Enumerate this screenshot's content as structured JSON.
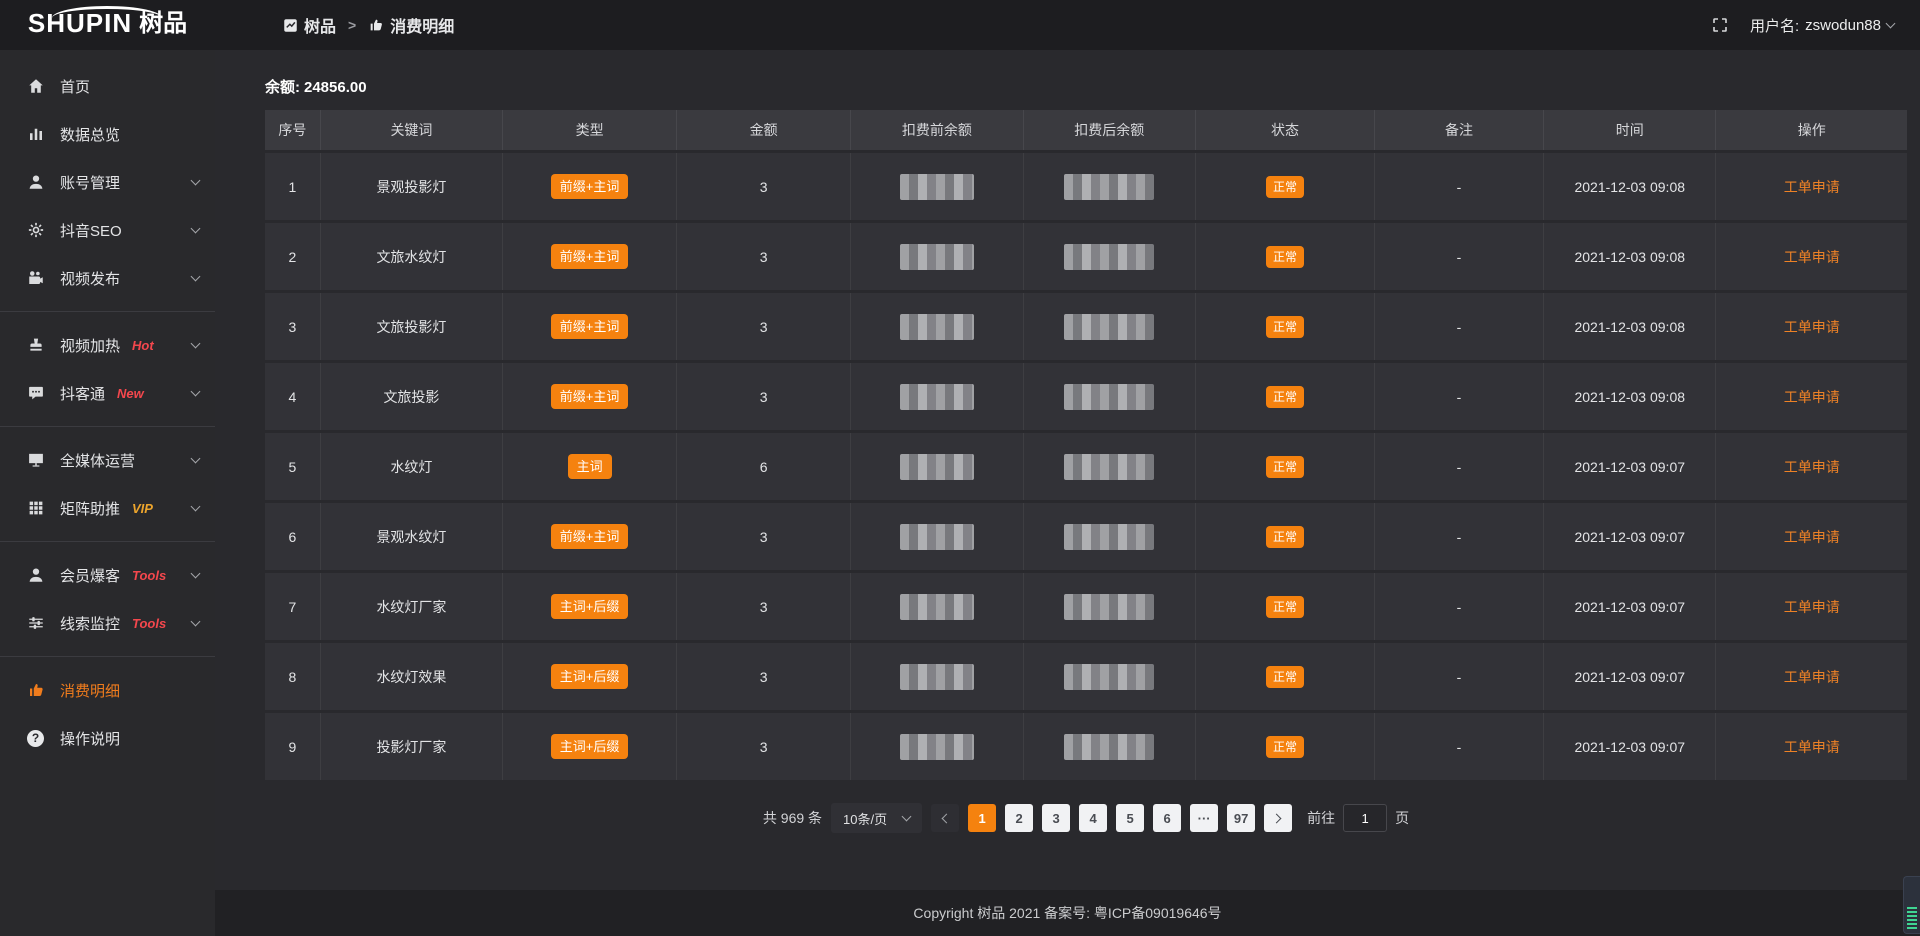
{
  "brand": {
    "logo_en": "SHUPIN",
    "logo_cn": "树品"
  },
  "topbar": {
    "breadcrumb": [
      {
        "label": "树品",
        "icon": "edit-square-icon"
      },
      {
        "label": "消费明细",
        "icon": "thumb-icon"
      }
    ],
    "separator": ">",
    "fullscreen_icon": "fullscreen-icon",
    "username_label": "用户名:",
    "username": "zswodun88"
  },
  "sidebar": {
    "items": [
      {
        "icon": "home-icon",
        "label": "首页"
      },
      {
        "icon": "bar-chart-icon",
        "label": "数据总览"
      },
      {
        "icon": "user-icon",
        "label": "账号管理",
        "expandable": true
      },
      {
        "icon": "gear-icon",
        "label": "抖音SEO",
        "expandable": true
      },
      {
        "icon": "video-camera-icon",
        "label": "视频发布",
        "expandable": true
      },
      {
        "divider": true
      },
      {
        "icon": "stamp-icon",
        "label": "视频加热",
        "badge": "Hot",
        "badge_style": "red",
        "expandable": true
      },
      {
        "icon": "chat-icon",
        "label": "抖客通",
        "badge": "New",
        "badge_style": "red",
        "expandable": true
      },
      {
        "divider": true
      },
      {
        "icon": "monitor-icon",
        "label": "全媒体运营",
        "expandable": true
      },
      {
        "icon": "grid-icon",
        "label": "矩阵助推",
        "badge": "VIP",
        "badge_style": "gold",
        "expandable": true
      },
      {
        "divider": true
      },
      {
        "icon": "user-icon",
        "label": "会员爆客",
        "badge": "Tools",
        "badge_style": "red",
        "expandable": true
      },
      {
        "icon": "sliders-icon",
        "label": "线索监控",
        "badge": "Tools",
        "badge_style": "red",
        "expandable": true
      },
      {
        "divider": true
      },
      {
        "icon": "thumb-icon",
        "label": "消费明细",
        "active": true
      },
      {
        "icon": "question-icon",
        "label": "操作说明"
      }
    ]
  },
  "balance": {
    "label": "余额:",
    "value": "24856.00"
  },
  "table": {
    "headers": [
      "序号",
      "关键词",
      "类型",
      "金额",
      "扣费前余额",
      "扣费后余额",
      "状态",
      "备注",
      "时间",
      "操作"
    ],
    "masked_columns": [
      "扣费前余额",
      "扣费后余额"
    ],
    "rows": [
      {
        "index": "1",
        "keyword": "景观投影灯",
        "type": "前缀+主词",
        "amount": "3",
        "status": "正常",
        "note": "-",
        "time": "2021-12-03 09:08",
        "action": "工单申请"
      },
      {
        "index": "2",
        "keyword": "文旅水纹灯",
        "type": "前缀+主词",
        "amount": "3",
        "status": "正常",
        "note": "-",
        "time": "2021-12-03 09:08",
        "action": "工单申请"
      },
      {
        "index": "3",
        "keyword": "文旅投影灯",
        "type": "前缀+主词",
        "amount": "3",
        "status": "正常",
        "note": "-",
        "time": "2021-12-03 09:08",
        "action": "工单申请"
      },
      {
        "index": "4",
        "keyword": "文旅投影",
        "type": "前缀+主词",
        "amount": "3",
        "status": "正常",
        "note": "-",
        "time": "2021-12-03 09:08",
        "action": "工单申请"
      },
      {
        "index": "5",
        "keyword": "水纹灯",
        "type": "主词",
        "amount": "6",
        "status": "正常",
        "note": "-",
        "time": "2021-12-03 09:07",
        "action": "工单申请"
      },
      {
        "index": "6",
        "keyword": "景观水纹灯",
        "type": "前缀+主词",
        "amount": "3",
        "status": "正常",
        "note": "-",
        "time": "2021-12-03 09:07",
        "action": "工单申请"
      },
      {
        "index": "7",
        "keyword": "水纹灯厂家",
        "type": "主词+后缀",
        "amount": "3",
        "status": "正常",
        "note": "-",
        "time": "2021-12-03 09:07",
        "action": "工单申请"
      },
      {
        "index": "8",
        "keyword": "水纹灯效果",
        "type": "主词+后缀",
        "amount": "3",
        "status": "正常",
        "note": "-",
        "time": "2021-12-03 09:07",
        "action": "工单申请"
      },
      {
        "index": "9",
        "keyword": "投影灯厂家",
        "type": "主词+后缀",
        "amount": "3",
        "status": "正常",
        "note": "-",
        "time": "2021-12-03 09:07",
        "action": "工单申请"
      }
    ]
  },
  "pagination": {
    "total_label": "共 969 条",
    "page_size": "10条/页",
    "pages": [
      "1",
      "2",
      "3",
      "4",
      "5",
      "6",
      "···",
      "97"
    ],
    "active_page": "1",
    "goto_label": "前往",
    "goto_value": "1",
    "goto_suffix": "页"
  },
  "footer": {
    "copyright": "Copyright 树品 2021 备案号: 粤ICP备09019646号"
  },
  "colors": {
    "accent": "#f5820f",
    "link": "#ee8226",
    "hot_badge": "#f4474d",
    "vip_badge": "#eda52c",
    "topbar_bg": "#1d1d20",
    "sidebar_bg": "#29292c",
    "row_bg": "#323237",
    "header_bg": "#3a3a3f"
  }
}
